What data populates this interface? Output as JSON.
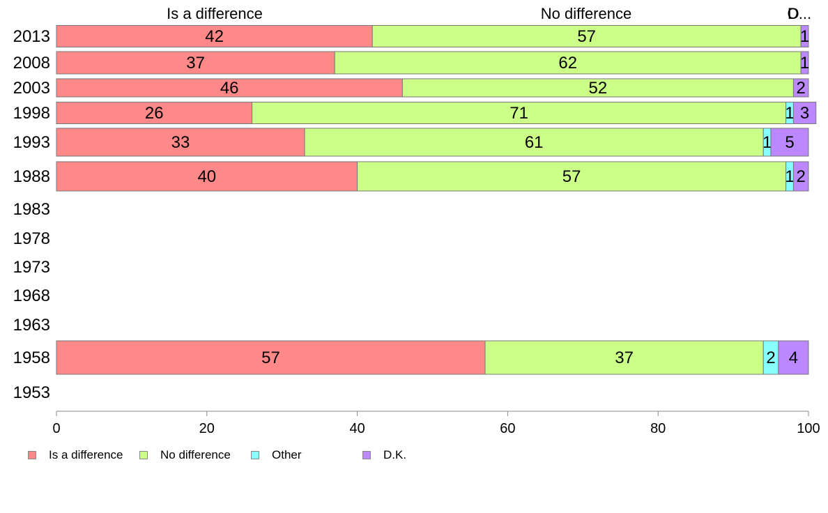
{
  "chart_data": {
    "type": "bar",
    "orientation": "horizontal",
    "stacked": true,
    "categories": [
      "2013",
      "2008",
      "2003",
      "1998",
      "1993",
      "1988",
      "1983",
      "1978",
      "1973",
      "1968",
      "1963",
      "1958",
      "1953"
    ],
    "series": [
      {
        "name": "Is a difference",
        "color": "#ff8888",
        "values": [
          42,
          37,
          46,
          26,
          33,
          40,
          null,
          null,
          null,
          null,
          null,
          57,
          null
        ]
      },
      {
        "name": "No difference",
        "color": "#ccff88",
        "values": [
          57,
          62,
          52,
          71,
          61,
          57,
          null,
          null,
          null,
          null,
          null,
          37,
          null
        ]
      },
      {
        "name": "Other",
        "color": "#88ffff",
        "values": [
          0,
          0,
          0,
          1,
          1,
          1,
          null,
          null,
          null,
          null,
          null,
          2,
          null
        ]
      },
      {
        "name": "D.K.",
        "color": "#bb88ff",
        "values": [
          1,
          1,
          2,
          3,
          5,
          2,
          null,
          null,
          null,
          null,
          null,
          4,
          null
        ]
      }
    ],
    "top_labels": [
      "Is a difference",
      "No difference",
      "O",
      "D..."
    ],
    "xlim": [
      0,
      100
    ],
    "xticks": [
      "0",
      "20",
      "40",
      "60",
      "80",
      "100"
    ],
    "grid": false,
    "legend_position": "bottom-left",
    "title": "",
    "xlabel": "",
    "ylabel": ""
  },
  "legend": {
    "items": [
      {
        "label": "Is a difference",
        "color": "#ff8888"
      },
      {
        "label": "No difference",
        "color": "#ccff88"
      },
      {
        "label": "Other",
        "color": "#88ffff"
      },
      {
        "label": "D.K.",
        "color": "#bb88ff"
      }
    ]
  }
}
